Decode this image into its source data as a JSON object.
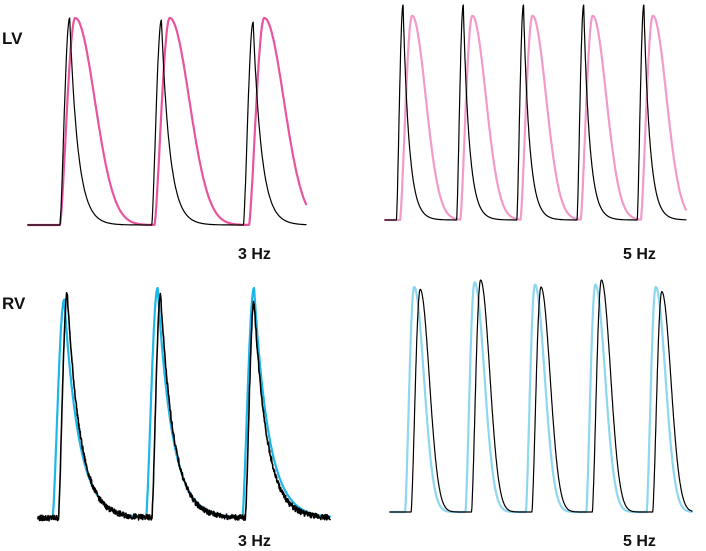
{
  "figure": {
    "row_labels": {
      "top": "LV",
      "bottom": "RV"
    },
    "panel_labels": {
      "lv_3hz": "3 Hz",
      "lv_5hz": "5 Hz",
      "rv_3hz": "3 Hz",
      "rv_5hz": "5 Hz"
    }
  },
  "chart_data": [
    {
      "type": "line",
      "panel": "LV 3 Hz",
      "frequency_hz": 3,
      "beats": 3,
      "series": [
        {
          "color": "#000000",
          "peak_times": [
            0.15,
            0.48,
            0.81
          ],
          "peaks": [
            1.0,
            0.99,
            0.98
          ]
        },
        {
          "color": "#e8549e",
          "peak_times": [
            0.17,
            0.51,
            0.85
          ],
          "peaks": [
            1.0,
            1.0,
            1.0
          ]
        }
      ],
      "ylim": [
        0,
        1
      ]
    },
    {
      "type": "line",
      "panel": "LV 5 Hz",
      "frequency_hz": 5,
      "beats": 5,
      "series": [
        {
          "color": "#000000",
          "peak_times": [
            0.06,
            0.26,
            0.46,
            0.66,
            0.86
          ],
          "peaks": [
            1.0,
            1.0,
            1.0,
            1.0,
            1.0
          ]
        },
        {
          "color": "#f29ac9",
          "peak_times": [
            0.09,
            0.29,
            0.49,
            0.69,
            0.89
          ],
          "peaks": [
            0.95,
            0.95,
            0.95,
            0.95,
            0.95
          ]
        }
      ],
      "ylim": [
        0,
        1
      ]
    },
    {
      "type": "line",
      "panel": "RV 3 Hz",
      "frequency_hz": 3,
      "beats": 3,
      "series": [
        {
          "color": "#000000",
          "peak_times": [
            0.1,
            0.42,
            0.74
          ],
          "peaks": [
            0.98,
            0.97,
            0.94
          ]
        },
        {
          "color": "#1fb6e8",
          "peak_times": [
            0.09,
            0.41,
            0.74
          ],
          "peaks": [
            0.95,
            1.0,
            1.0
          ]
        }
      ],
      "ylim": [
        0,
        1
      ]
    },
    {
      "type": "line",
      "panel": "RV 5 Hz",
      "frequency_hz": 5,
      "beats": 5,
      "series": [
        {
          "color": "#000000",
          "peak_times": [
            0.1,
            0.3,
            0.5,
            0.7,
            0.9
          ],
          "peaks": [
            0.96,
            1.0,
            0.97,
            1.0,
            0.95
          ]
        },
        {
          "color": "#8fd6f0",
          "peak_times": [
            0.08,
            0.28,
            0.48,
            0.68,
            0.88
          ],
          "peaks": [
            0.97,
            0.99,
            0.98,
            0.98,
            0.97
          ]
        }
      ],
      "ylim": [
        0,
        1
      ]
    }
  ]
}
